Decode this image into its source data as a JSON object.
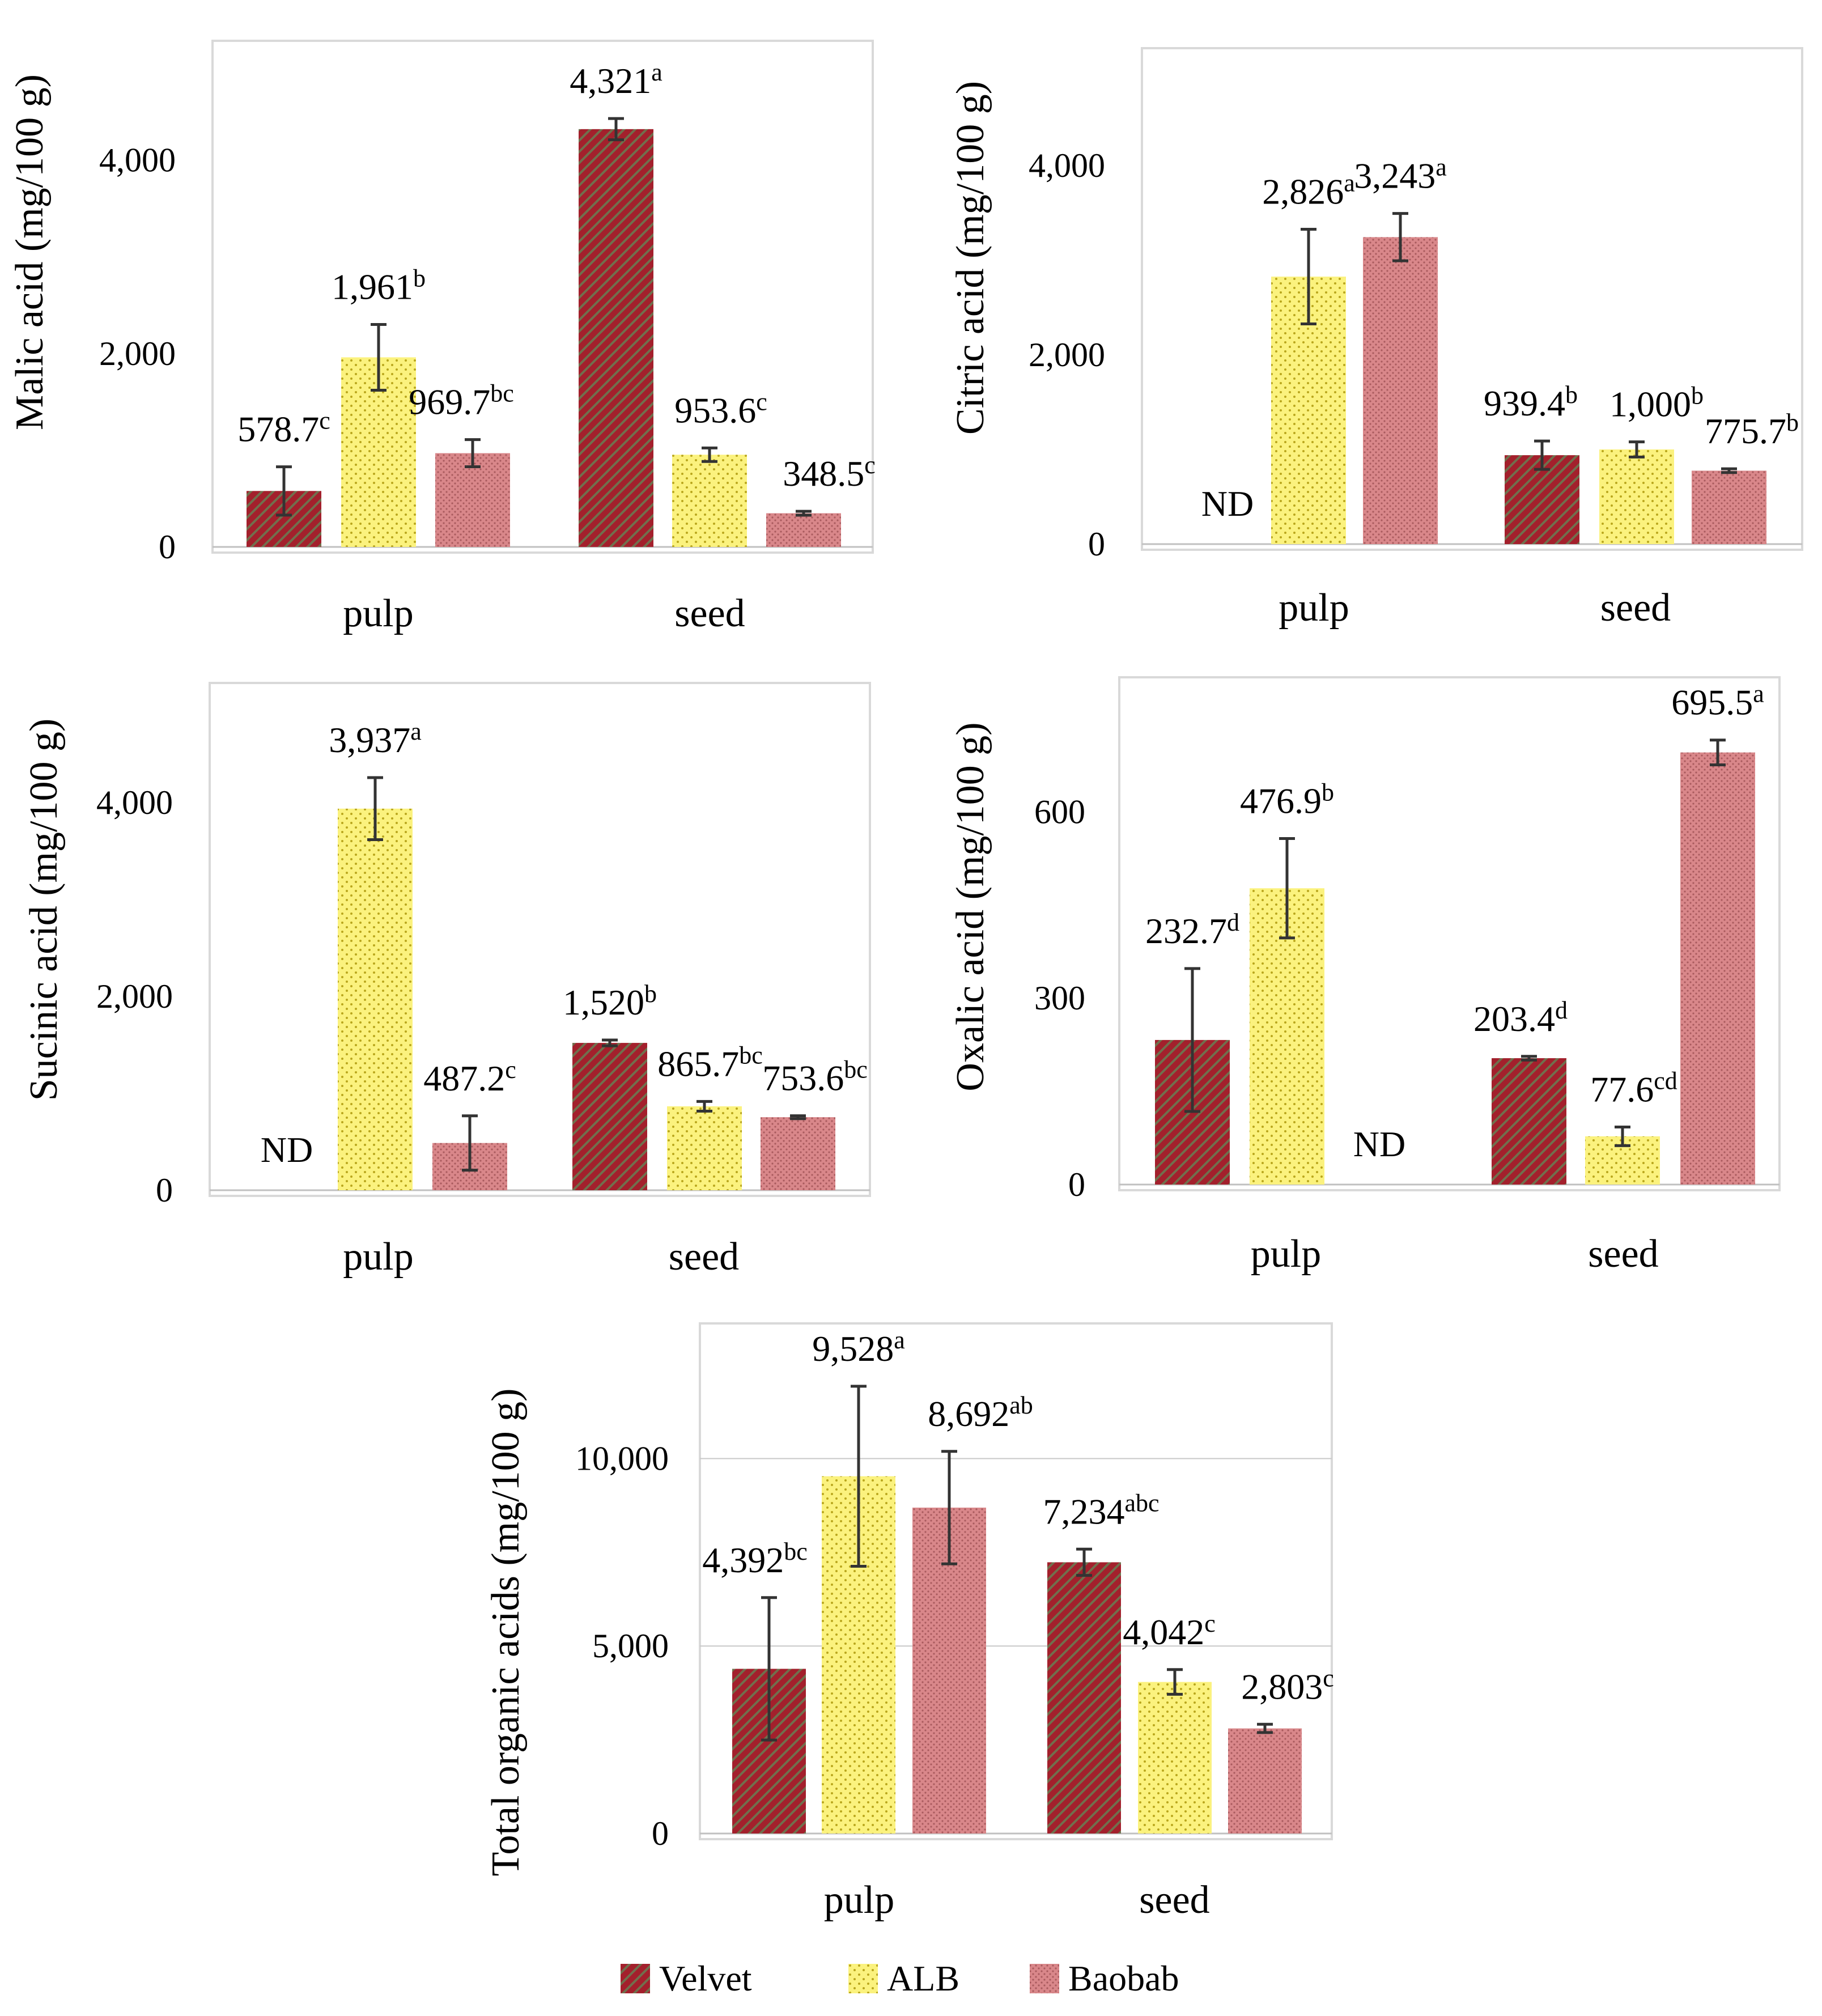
{
  "colors": {
    "velvet": "#a3202c",
    "velvet_stripe": "#5e8a58",
    "alb": "#fbf27e",
    "alb_dot": "#b9a61c",
    "baobab": "#d9878a",
    "baobab_dot": "#a95a5e",
    "frame": "#d9d9d9",
    "gridline": "#c8c8c8",
    "errorbar": "#333333"
  },
  "legend": {
    "velvet": "Velvet",
    "alb": "ALB",
    "baobab": "Baobab"
  },
  "chart_data": [
    {
      "type": "bar",
      "panel": "malic",
      "ylabel": "Malic acid (mg/100 g)",
      "categories": [
        "pulp",
        "seed"
      ],
      "ylim": [
        0,
        5000
      ],
      "yticks": [
        0,
        2000,
        4000
      ],
      "ytick_labels": [
        "0",
        "2,000",
        "4,000"
      ],
      "grid": false,
      "series": [
        {
          "name": "Velvet",
          "values": [
            578.7,
            4321
          ],
          "errors": [
            250,
            110
          ],
          "labels": [
            "578.7",
            "4,321"
          ],
          "sup": [
            "c",
            "a"
          ]
        },
        {
          "name": "ALB",
          "values": [
            1961,
            953.6
          ],
          "errors": [
            340,
            70
          ],
          "labels": [
            "1,961",
            "953.6"
          ],
          "sup": [
            "b",
            "c"
          ]
        },
        {
          "name": "Baobab",
          "values": [
            969.7,
            348.5
          ],
          "errors": [
            140,
            20
          ],
          "labels": [
            "969.7",
            "348.5"
          ],
          "sup": [
            "bc",
            "c"
          ]
        }
      ]
    },
    {
      "type": "bar",
      "panel": "citric",
      "ylabel": "Citric acid (mg/100 g)",
      "categories": [
        "pulp",
        "seed"
      ],
      "ylim": [
        0,
        5000
      ],
      "yticks": [
        0,
        2000,
        4000
      ],
      "ytick_labels": [
        "0",
        "2,000",
        "4,000"
      ],
      "grid": false,
      "series": [
        {
          "name": "Velvet",
          "values": [
            0,
            939.4
          ],
          "errors": [
            0,
            150
          ],
          "labels": [
            "ND",
            "939.4"
          ],
          "sup": [
            "",
            "b"
          ]
        },
        {
          "name": "ALB",
          "values": [
            2826,
            1000
          ],
          "errors": [
            500,
            80
          ],
          "labels": [
            "2,826",
            "1,000"
          ],
          "sup": [
            "a",
            "b"
          ]
        },
        {
          "name": "Baobab",
          "values": [
            3243,
            775.7
          ],
          "errors": [
            250,
            20
          ],
          "labels": [
            "3,243",
            "775.7"
          ],
          "sup": [
            "a",
            "b"
          ]
        }
      ]
    },
    {
      "type": "bar",
      "panel": "succinic",
      "ylabel": "Sucinic acid (mg/100 g)",
      "categories": [
        "pulp",
        "seed"
      ],
      "ylim": [
        0,
        5000
      ],
      "yticks": [
        0,
        2000,
        4000
      ],
      "ytick_labels": [
        "0",
        "2,000",
        "4,000"
      ],
      "grid": false,
      "series": [
        {
          "name": "Velvet",
          "values": [
            0,
            1520
          ],
          "errors": [
            0,
            30
          ],
          "labels": [
            "ND",
            "1,520"
          ],
          "sup": [
            "",
            "b"
          ]
        },
        {
          "name": "ALB",
          "values": [
            3937,
            865.7
          ],
          "errors": [
            320,
            50
          ],
          "labels": [
            "3,937",
            "865.7"
          ],
          "sup": [
            "a",
            "bc"
          ]
        },
        {
          "name": "Baobab",
          "values": [
            487.2,
            753.6
          ],
          "errors": [
            280,
            15
          ],
          "labels": [
            "487.2",
            "753.6"
          ],
          "sup": [
            "c",
            "bc"
          ]
        }
      ]
    },
    {
      "type": "bar",
      "panel": "oxalic",
      "ylabel": "Oxalic acid (mg/100 g)",
      "categories": [
        "pulp",
        "seed"
      ],
      "ylim": [
        0,
        780
      ],
      "yticks": [
        0,
        300,
        600
      ],
      "ytick_labels": [
        "0",
        "300",
        "600"
      ],
      "grid": false,
      "series": [
        {
          "name": "Velvet",
          "values": [
            232.7,
            203.4
          ],
          "errors": [
            115,
            3
          ],
          "labels": [
            "232.7",
            "203.4"
          ],
          "sup": [
            "d",
            "d"
          ]
        },
        {
          "name": "ALB",
          "values": [
            476.9,
            77.6
          ],
          "errors": [
            80,
            15
          ],
          "labels": [
            "476.9",
            "77.6"
          ],
          "sup": [
            "b",
            "cd"
          ]
        },
        {
          "name": "Baobab",
          "values": [
            0,
            695.5
          ],
          "errors": [
            0,
            20
          ],
          "labels": [
            "ND",
            "695.5"
          ],
          "sup": [
            "",
            "a"
          ]
        }
      ]
    },
    {
      "type": "bar",
      "panel": "total",
      "ylabel": "Total organic acids (mg/100 g)",
      "categories": [
        "pulp",
        "seed"
      ],
      "ylim": [
        0,
        13000
      ],
      "yticks": [
        0,
        5000,
        10000
      ],
      "ytick_labels": [
        "0",
        "5,000",
        "10,000"
      ],
      "grid": true,
      "series": [
        {
          "name": "Velvet",
          "values": [
            4392,
            7234
          ],
          "errors": [
            1900,
            350
          ],
          "labels": [
            "4,392",
            "7,234"
          ],
          "sup": [
            "bc",
            "abc"
          ]
        },
        {
          "name": "ALB",
          "values": [
            9528,
            4042
          ],
          "errors": [
            2400,
            330
          ],
          "labels": [
            "9,528",
            "4,042"
          ],
          "sup": [
            "a",
            "c"
          ]
        },
        {
          "name": "Baobab",
          "values": [
            8692,
            2803
          ],
          "errors": [
            1500,
            110
          ],
          "labels": [
            "8,692",
            "2,803"
          ],
          "sup": [
            "ab",
            "c"
          ]
        }
      ]
    }
  ]
}
